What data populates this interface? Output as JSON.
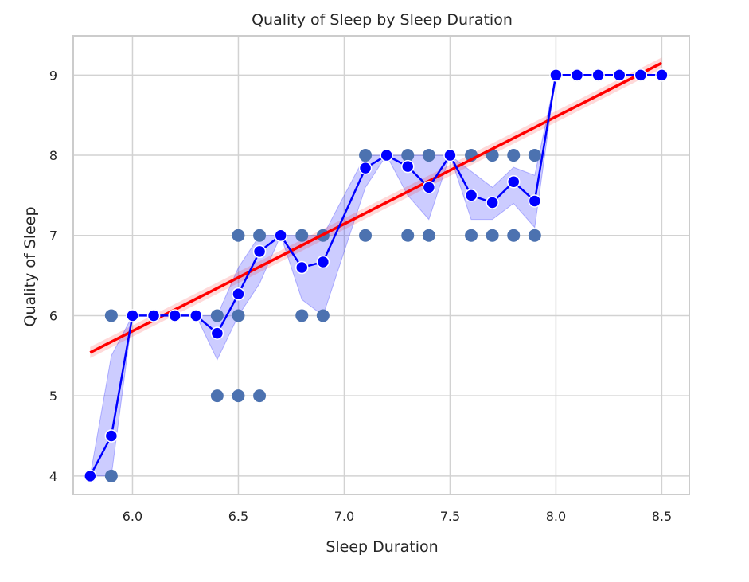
{
  "chart_data": {
    "type": "scatter",
    "title": "Quality of Sleep by Sleep Duration",
    "xlabel": "Sleep Duration",
    "ylabel": "Quality of Sleep",
    "xlim": [
      5.72,
      8.63
    ],
    "ylim": [
      3.77,
      9.49
    ],
    "xticks": [
      "6.0",
      "6.5",
      "7.0",
      "7.5",
      "8.0",
      "8.5"
    ],
    "yticks": [
      "4",
      "5",
      "6",
      "7",
      "8",
      "9"
    ],
    "grid": true,
    "scatter_points": [
      [
        5.8,
        4
      ],
      [
        5.9,
        6
      ],
      [
        5.9,
        4
      ],
      [
        6.0,
        6
      ],
      [
        6.1,
        6
      ],
      [
        6.2,
        6
      ],
      [
        6.3,
        6
      ],
      [
        6.4,
        6
      ],
      [
        6.4,
        5
      ],
      [
        6.5,
        7
      ],
      [
        6.5,
        6
      ],
      [
        6.5,
        5
      ],
      [
        6.6,
        7
      ],
      [
        6.6,
        5
      ],
      [
        6.7,
        7
      ],
      [
        6.8,
        7
      ],
      [
        6.8,
        6
      ],
      [
        6.9,
        7
      ],
      [
        6.9,
        6
      ],
      [
        7.1,
        8
      ],
      [
        7.1,
        7
      ],
      [
        7.2,
        8
      ],
      [
        7.3,
        8
      ],
      [
        7.3,
        7
      ],
      [
        7.4,
        8
      ],
      [
        7.4,
        7
      ],
      [
        7.5,
        8
      ],
      [
        7.6,
        8
      ],
      [
        7.6,
        7
      ],
      [
        7.7,
        8
      ],
      [
        7.7,
        7
      ],
      [
        7.8,
        8
      ],
      [
        7.8,
        7
      ],
      [
        7.9,
        8
      ],
      [
        7.9,
        7
      ],
      [
        8.0,
        9
      ],
      [
        8.1,
        9
      ],
      [
        8.2,
        9
      ],
      [
        8.3,
        9
      ],
      [
        8.4,
        9
      ],
      [
        8.5,
        9
      ]
    ],
    "mean_line": {
      "x": [
        5.8,
        5.9,
        6.0,
        6.1,
        6.2,
        6.3,
        6.4,
        6.5,
        6.6,
        6.7,
        6.8,
        6.9,
        7.1,
        7.2,
        7.3,
        7.4,
        7.5,
        7.6,
        7.7,
        7.8,
        7.9,
        8.0,
        8.1,
        8.2,
        8.3,
        8.4,
        8.5
      ],
      "y": [
        4.0,
        4.5,
        6.0,
        6.0,
        6.0,
        6.0,
        5.78,
        6.27,
        6.8,
        7.0,
        6.6,
        6.67,
        7.84,
        8.0,
        7.86,
        7.6,
        8.0,
        7.5,
        7.41,
        7.67,
        7.43,
        9.0,
        9.0,
        9.0,
        9.0,
        9.0,
        9.0
      ],
      "ci_lower": [
        4.0,
        4.0,
        6.0,
        6.0,
        6.0,
        6.0,
        5.45,
        6.0,
        6.4,
        7.0,
        6.2,
        6.0,
        7.6,
        8.0,
        7.5,
        7.2,
        8.0,
        7.2,
        7.2,
        7.4,
        7.1,
        9.0,
        9.0,
        9.0,
        9.0,
        9.0,
        9.0
      ],
      "ci_upper": [
        4.0,
        5.5,
        6.0,
        6.0,
        6.0,
        6.0,
        6.0,
        6.6,
        7.0,
        7.0,
        7.0,
        7.0,
        8.0,
        8.0,
        8.0,
        8.0,
        8.0,
        7.8,
        7.6,
        7.85,
        7.75,
        9.0,
        9.0,
        9.0,
        9.0,
        9.0,
        9.0
      ]
    },
    "regression_line": {
      "x": [
        5.8,
        8.5
      ],
      "y": [
        5.54,
        9.15
      ],
      "band": 0.07
    },
    "colors": {
      "scatter": "#4c72b0",
      "mean_line": "#0000ff",
      "ci_band": "#0000ff",
      "regression": "#ff0000",
      "grid": "#d2d2d2",
      "frame": "#cccccc",
      "text": "#262626"
    }
  }
}
